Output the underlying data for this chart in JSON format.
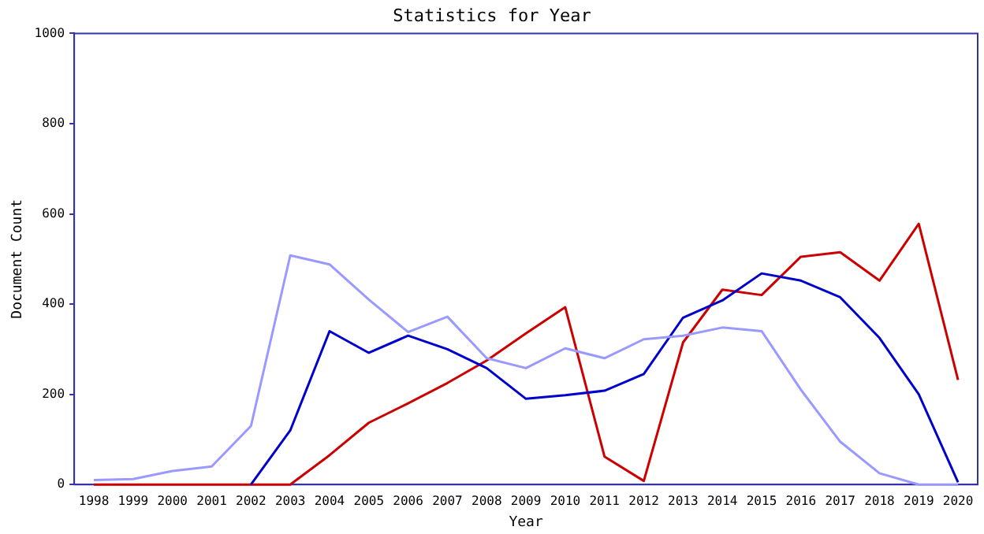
{
  "chart_data": {
    "type": "line",
    "title": "Statistics for Year",
    "xlabel": "Year",
    "ylabel": "Document Count",
    "categories": [
      "1998",
      "1999",
      "2000",
      "2001",
      "2002",
      "2003",
      "2004",
      "2005",
      "2006",
      "2007",
      "2008",
      "2009",
      "2010",
      "2011",
      "2012",
      "2013",
      "2014",
      "2015",
      "2016",
      "2017",
      "2018",
      "2019",
      "2020"
    ],
    "series": [
      {
        "color": "#9999ff",
        "values": [
          10,
          12,
          30,
          40,
          130,
          508,
          488,
          410,
          338,
          372,
          280,
          258,
          302,
          280,
          322,
          330,
          348,
          340,
          210,
          95,
          25,
          0,
          0
        ]
      },
      {
        "color": "#0000cc",
        "values": [
          null,
          null,
          null,
          null,
          0,
          120,
          340,
          292,
          330,
          300,
          258,
          190,
          198,
          208,
          245,
          370,
          408,
          468,
          452,
          415,
          325,
          200,
          5
        ]
      },
      {
        "color": "#cc0000",
        "values": [
          0,
          0,
          0,
          0,
          0,
          0,
          65,
          137,
          180,
          225,
          275,
          335,
          393,
          62,
          8,
          315,
          432,
          420,
          505,
          515,
          452,
          578,
          232
        ]
      }
    ],
    "ylim": [
      0,
      1000
    ],
    "yticks": [
      0,
      200,
      400,
      600,
      800,
      1000
    ],
    "grid": false,
    "legend": false,
    "marker": "none",
    "line_style": "solid"
  }
}
